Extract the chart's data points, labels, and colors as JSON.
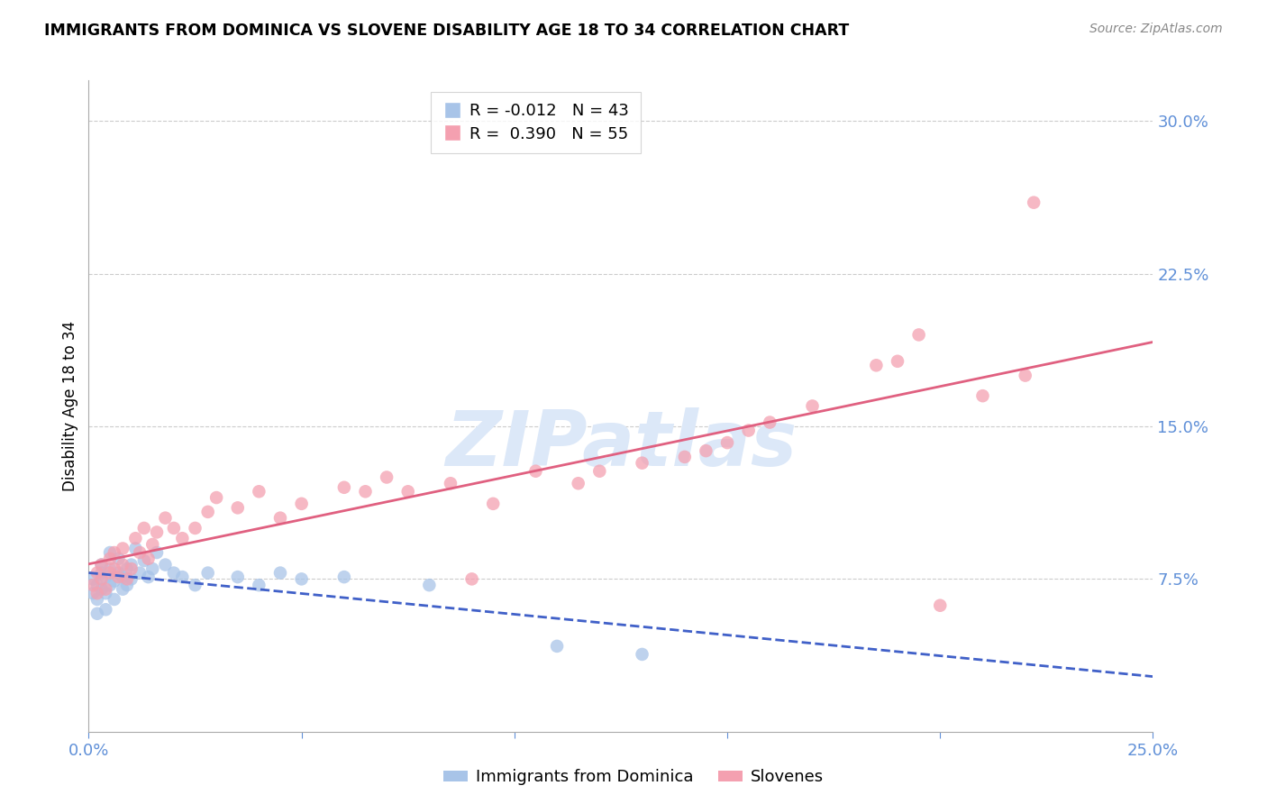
{
  "title": "IMMIGRANTS FROM DOMINICA VS SLOVENE DISABILITY AGE 18 TO 34 CORRELATION CHART",
  "source": "Source: ZipAtlas.com",
  "ylabel_label": "Disability Age 18 to 34",
  "ytick_labels": [
    "7.5%",
    "15.0%",
    "22.5%",
    "30.0%"
  ],
  "ytick_values": [
    0.075,
    0.15,
    0.225,
    0.3
  ],
  "xlim": [
    0.0,
    0.25
  ],
  "ylim": [
    0.0,
    0.32
  ],
  "legend_r1": "R = -0.012",
  "legend_n1": "N = 43",
  "legend_r2": "R =  0.390",
  "legend_n2": "N = 55",
  "color_dominica": "#a8c4e8",
  "color_slovene": "#f4a0b0",
  "color_dominica_line": "#4060c8",
  "color_slovene_line": "#e06080",
  "color_axis_labels": "#6090d8",
  "watermark_color": "#dce8f8",
  "dominica_x": [
    0.001,
    0.001,
    0.002,
    0.002,
    0.002,
    0.003,
    0.003,
    0.003,
    0.004,
    0.004,
    0.004,
    0.005,
    0.005,
    0.005,
    0.006,
    0.006,
    0.007,
    0.007,
    0.008,
    0.008,
    0.009,
    0.009,
    0.01,
    0.01,
    0.011,
    0.012,
    0.013,
    0.014,
    0.015,
    0.016,
    0.018,
    0.02,
    0.022,
    0.025,
    0.028,
    0.035,
    0.04,
    0.045,
    0.05,
    0.06,
    0.08,
    0.11,
    0.13
  ],
  "dominica_y": [
    0.068,
    0.075,
    0.065,
    0.072,
    0.058,
    0.07,
    0.078,
    0.082,
    0.06,
    0.068,
    0.076,
    0.072,
    0.08,
    0.088,
    0.065,
    0.074,
    0.078,
    0.085,
    0.07,
    0.076,
    0.072,
    0.08,
    0.075,
    0.082,
    0.09,
    0.078,
    0.084,
    0.076,
    0.08,
    0.088,
    0.082,
    0.078,
    0.076,
    0.072,
    0.078,
    0.076,
    0.072,
    0.078,
    0.075,
    0.076,
    0.072,
    0.042,
    0.038
  ],
  "slovene_x": [
    0.001,
    0.002,
    0.002,
    0.003,
    0.003,
    0.004,
    0.005,
    0.005,
    0.006,
    0.006,
    0.007,
    0.008,
    0.008,
    0.009,
    0.01,
    0.011,
    0.012,
    0.013,
    0.014,
    0.015,
    0.016,
    0.018,
    0.02,
    0.022,
    0.025,
    0.028,
    0.03,
    0.035,
    0.04,
    0.045,
    0.05,
    0.06,
    0.065,
    0.07,
    0.075,
    0.085,
    0.09,
    0.095,
    0.105,
    0.115,
    0.12,
    0.13,
    0.14,
    0.145,
    0.15,
    0.155,
    0.16,
    0.17,
    0.185,
    0.19,
    0.195,
    0.2,
    0.21,
    0.22,
    0.222
  ],
  "slovene_y": [
    0.072,
    0.068,
    0.078,
    0.075,
    0.082,
    0.07,
    0.078,
    0.085,
    0.08,
    0.088,
    0.076,
    0.082,
    0.09,
    0.075,
    0.08,
    0.095,
    0.088,
    0.1,
    0.085,
    0.092,
    0.098,
    0.105,
    0.1,
    0.095,
    0.1,
    0.108,
    0.115,
    0.11,
    0.118,
    0.105,
    0.112,
    0.12,
    0.118,
    0.125,
    0.118,
    0.122,
    0.075,
    0.112,
    0.128,
    0.122,
    0.128,
    0.132,
    0.135,
    0.138,
    0.142,
    0.148,
    0.152,
    0.16,
    0.18,
    0.182,
    0.195,
    0.062,
    0.165,
    0.175,
    0.26
  ]
}
